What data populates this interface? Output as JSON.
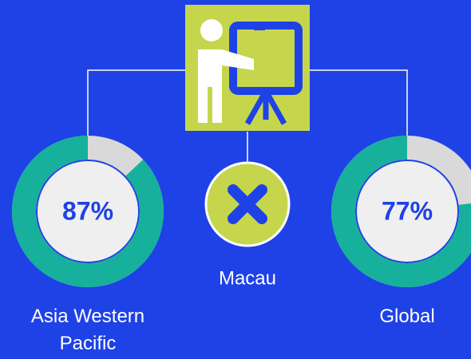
{
  "chart_data": [
    {
      "type": "donut",
      "title": "Asia Western Pacific",
      "values": [
        87
      ],
      "value_labels": [
        "87%"
      ],
      "color": "#17b09c",
      "track_color": "#d9d9d9"
    },
    {
      "type": "donut",
      "title": "Global",
      "values": [
        77
      ],
      "value_labels": [
        "77%"
      ],
      "color": "#17b09c",
      "track_color": "#d9d9d9"
    }
  ],
  "center": {
    "label": "Macau"
  }
}
